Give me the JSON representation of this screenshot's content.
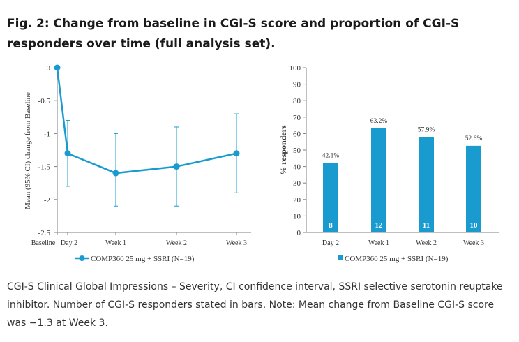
{
  "figure": {
    "title": "Fig. 2: Change from baseline in CGI-S score and proportion of CGI-S responders over time (full analysis set).",
    "caption": "CGI-S Clinical Global Impressions – Severity, CI confidence interval, SSRI selective serotonin reuptake inhibitor. Number of CGI-S responders stated in bars. Note: Mean change from Baseline CGI-S score was −1.3 at Week 3."
  },
  "colors": {
    "series": "#1a9bd0",
    "axis": "#7f7f7f"
  },
  "chart_data": [
    {
      "type": "line",
      "title": "",
      "xlabel": "",
      "ylabel": "Mean (95% CI) change from Baseline",
      "categories": [
        "Baseline",
        "Day 2",
        "Week 1",
        "Week 2",
        "Week 3"
      ],
      "ylim": [
        -2.5,
        0
      ],
      "yticks": [
        0,
        -0.5,
        -1,
        -1.5,
        -2,
        -2.5
      ],
      "ytick_labels": [
        "0",
        "-0.5",
        "-1",
        "-1.5",
        "-2",
        "-2.5"
      ],
      "series": [
        {
          "name": "COMP360 25 mg + SSRI (N=19)",
          "values": [
            0,
            -1.3,
            -1.6,
            -1.5,
            -1.3
          ],
          "ci_lower": [
            null,
            -1.8,
            -2.1,
            -2.1,
            -1.9
          ],
          "ci_upper": [
            null,
            -0.8,
            -1.0,
            -0.9,
            -0.7
          ]
        }
      ],
      "legend": "COMP360 25 mg + SSRI (N=19)",
      "legend_position": "bottom"
    },
    {
      "type": "bar",
      "title": "",
      "xlabel": "",
      "ylabel": "% responders",
      "categories": [
        "Day 2",
        "Week 1",
        "Week 2",
        "Week 3"
      ],
      "values": [
        42.1,
        63.2,
        57.9,
        52.6
      ],
      "value_labels": [
        "42.1%",
        "63.2%",
        "57.9%",
        "52.6%"
      ],
      "counts": [
        "8",
        "12",
        "11",
        "10"
      ],
      "ylim": [
        0,
        100
      ],
      "yticks": [
        0,
        10,
        20,
        30,
        40,
        50,
        60,
        70,
        80,
        90,
        100
      ],
      "legend": "COMP360 25 mg + SSRI (N=19)",
      "legend_position": "bottom"
    }
  ]
}
